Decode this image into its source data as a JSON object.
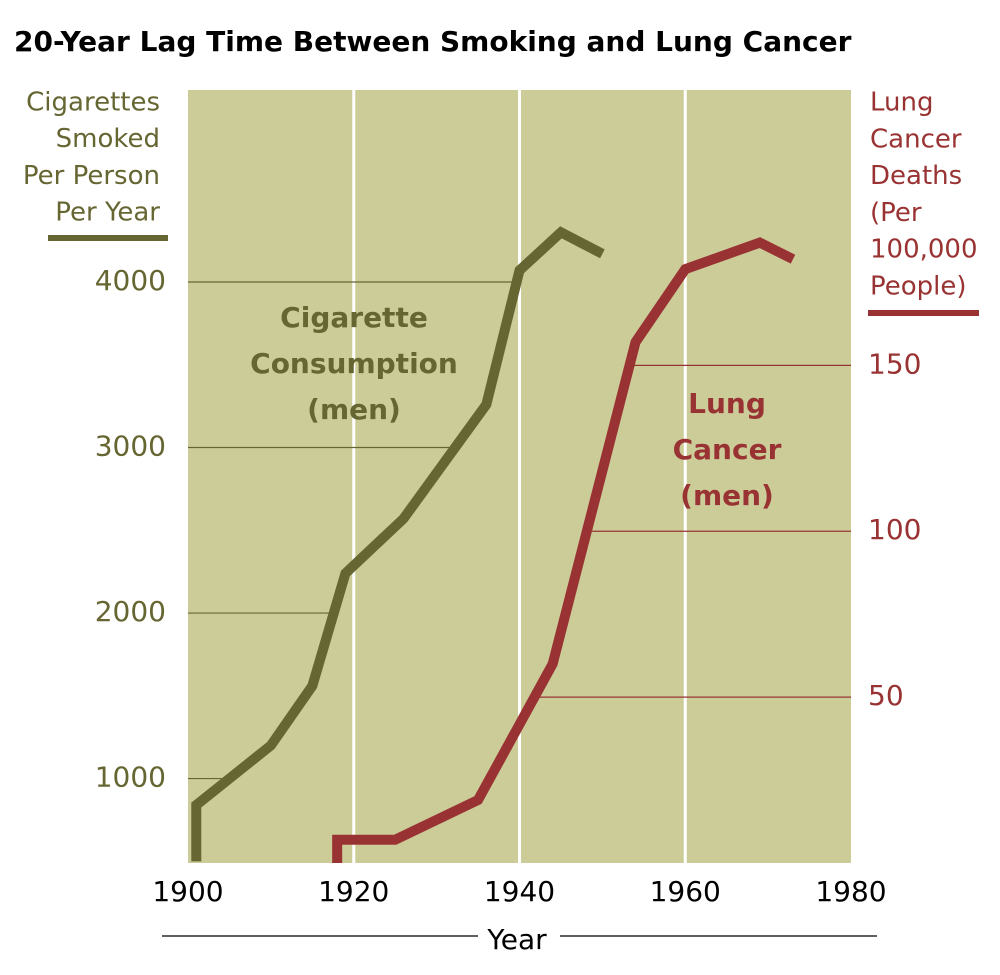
{
  "chart_data": {
    "type": "line",
    "title": "20-Year Lag Time Between Smoking and Lung Cancer",
    "x_label": "Year",
    "y_label_lines": [
      "Cigarettes",
      "Smoked",
      "Per Person",
      "Per Year"
    ],
    "y2_label_lines": [
      "Lung",
      "Cancer",
      "Deaths",
      "(Per",
      "100,000",
      "People)"
    ],
    "xlim": [
      1900,
      1980
    ],
    "xticks": [
      1900,
      1920,
      1940,
      1960,
      1980
    ],
    "ylim": [
      490,
      5160
    ],
    "yticks": [
      1000,
      2000,
      3000,
      4000
    ],
    "y2lim": [
      0,
      233
    ],
    "y2ticks": [
      50,
      100,
      150
    ],
    "grid": true,
    "background": "#cccc99",
    "series": [
      {
        "name": [
          "Cigarette",
          "Consumption",
          "(men)"
        ],
        "color": "#666633",
        "x": [
          1901,
          1901,
          1910,
          1915,
          1919,
          1926,
          1936,
          1940,
          1945,
          1950
        ],
        "values": [
          500,
          840,
          1200,
          1560,
          2240,
          2570,
          3260,
          4070,
          4300,
          4170
        ]
      },
      {
        "name": [
          "Lung",
          "Cancer",
          "(men)"
        ],
        "color": "#993333",
        "axis": "y2",
        "x": [
          1918,
          1918,
          1925,
          1935,
          1944,
          1954,
          1960,
          1969,
          1973
        ],
        "values": [
          0,
          7,
          7,
          19,
          60,
          157,
          179,
          187,
          182
        ]
      }
    ]
  }
}
